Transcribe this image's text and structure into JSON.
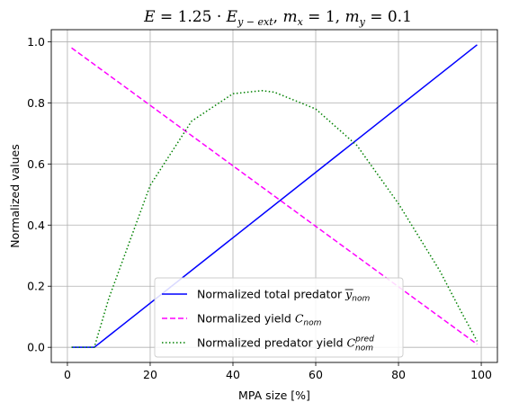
{
  "chart_data": {
    "type": "line",
    "title": {
      "E": "E",
      "eq": " = 1.25 · ",
      "Ey": "E",
      "Ey_sub": "y − ext",
      "mx": "m",
      "mx_sub": "x",
      "mx_val": " = 1, ",
      "my": "m",
      "my_sub": "y",
      "my_val": " = 0.1"
    },
    "xlabel": "MPA size [%]",
    "ylabel": "Normalized values",
    "xlim": [
      -3.9,
      103.9
    ],
    "ylim": [
      -0.0495,
      1.0395
    ],
    "xticks": [
      0,
      20,
      40,
      60,
      80,
      100
    ],
    "yticks": [
      0.0,
      0.2,
      0.4,
      0.6,
      0.8,
      1.0
    ],
    "xtick_labels": [
      "0",
      "20",
      "40",
      "60",
      "80",
      "100"
    ],
    "ytick_labels": [
      "0.0",
      "0.2",
      "0.4",
      "0.6",
      "0.8",
      "1.0"
    ],
    "grid": true,
    "legend_position": "lower-center",
    "series": [
      {
        "key": "predator",
        "label_main": "Normalized total predator ",
        "label_sym": "y",
        "label_sub": "nom",
        "label_sup": "",
        "label_overline": true,
        "color": "#0000ff",
        "style": "solid",
        "x": [
          1,
          6.5,
          99
        ],
        "y": [
          0.0,
          0.0,
          0.99
        ]
      },
      {
        "key": "yield",
        "label_main": "Normalized yield ",
        "label_sym": "C",
        "label_sub": "nom",
        "label_sup": "",
        "label_overline": false,
        "color": "#ff00ff",
        "style": "dashed",
        "x": [
          1,
          99
        ],
        "y": [
          0.98,
          0.01
        ]
      },
      {
        "key": "predator_yield",
        "label_main": "Normalized predator yield ",
        "label_sym": "C",
        "label_sub": "nom",
        "label_sup": "pred",
        "label_overline": false,
        "color": "#008000",
        "style": "dotted",
        "x": [
          1,
          6.5,
          10,
          20,
          30,
          40,
          47,
          50,
          60,
          70,
          80,
          90,
          95,
          99
        ],
        "y": [
          0.0,
          0.0,
          0.16,
          0.53,
          0.74,
          0.83,
          0.84,
          0.835,
          0.78,
          0.66,
          0.47,
          0.25,
          0.12,
          0.02
        ]
      }
    ]
  }
}
